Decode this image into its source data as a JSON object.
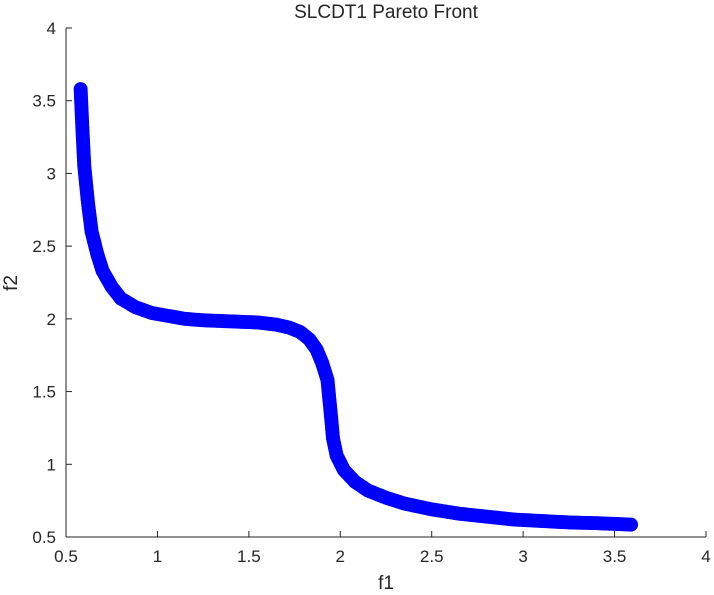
{
  "chart_data": {
    "type": "scatter",
    "title": "SLCDT1 Pareto Front",
    "xlabel": "f1",
    "ylabel": "f2",
    "xlim": [
      0.5,
      4
    ],
    "ylim": [
      0.5,
      4
    ],
    "xticks": [
      "0.5",
      "1",
      "1.5",
      "2",
      "2.5",
      "3",
      "3.5",
      "4"
    ],
    "yticks": [
      "0.5",
      "1",
      "1.5",
      "2",
      "2.5",
      "3",
      "3.5",
      "4"
    ],
    "grid": false,
    "marker_color": "#0000ff",
    "series": [
      {
        "points": [
          [
            0.58,
            3.58
          ],
          [
            0.59,
            3.3
          ],
          [
            0.6,
            3.05
          ],
          [
            0.62,
            2.8
          ],
          [
            0.64,
            2.6
          ],
          [
            0.67,
            2.45
          ],
          [
            0.7,
            2.33
          ],
          [
            0.75,
            2.22
          ],
          [
            0.8,
            2.14
          ],
          [
            0.88,
            2.08
          ],
          [
            0.97,
            2.04
          ],
          [
            1.06,
            2.02
          ],
          [
            1.15,
            2.0
          ],
          [
            1.25,
            1.99
          ],
          [
            1.35,
            1.985
          ],
          [
            1.45,
            1.98
          ],
          [
            1.55,
            1.975
          ],
          [
            1.65,
            1.96
          ],
          [
            1.72,
            1.94
          ],
          [
            1.78,
            1.91
          ],
          [
            1.83,
            1.86
          ],
          [
            1.87,
            1.79
          ],
          [
            1.9,
            1.7
          ],
          [
            1.93,
            1.58
          ],
          [
            1.94,
            1.45
          ],
          [
            1.95,
            1.32
          ],
          [
            1.96,
            1.18
          ],
          [
            1.98,
            1.06
          ],
          [
            2.02,
            0.96
          ],
          [
            2.08,
            0.88
          ],
          [
            2.15,
            0.82
          ],
          [
            2.25,
            0.77
          ],
          [
            2.35,
            0.73
          ],
          [
            2.5,
            0.69
          ],
          [
            2.65,
            0.66
          ],
          [
            2.8,
            0.64
          ],
          [
            2.95,
            0.62
          ],
          [
            3.1,
            0.61
          ],
          [
            3.25,
            0.6
          ],
          [
            3.4,
            0.595
          ],
          [
            3.5,
            0.59
          ],
          [
            3.59,
            0.585
          ]
        ]
      }
    ]
  }
}
